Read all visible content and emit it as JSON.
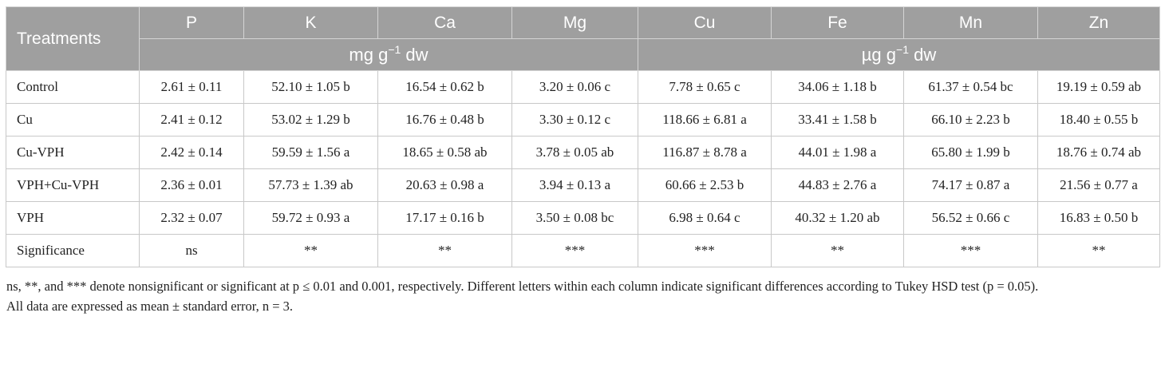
{
  "table": {
    "treatments_header": "Treatments",
    "columns": [
      "P",
      "K",
      "Ca",
      "Mg",
      "Cu",
      "Fe",
      "Mn",
      "Zn"
    ],
    "unit_groups": [
      {
        "unit": "mg g",
        "exp": "−1",
        "suffix": " dw"
      },
      {
        "unit": "µg g",
        "exp": "−1",
        "suffix": " dw"
      }
    ],
    "rows": [
      {
        "treatment": "Control",
        "values": [
          "2.61 ± 0.11",
          "52.10 ± 1.05 b",
          "16.54 ± 0.62 b",
          "3.20 ± 0.06 c",
          "7.78 ± 0.65 c",
          "34.06 ± 1.18 b",
          "61.37 ± 0.54 bc",
          "19.19 ± 0.59 ab"
        ]
      },
      {
        "treatment": "Cu",
        "values": [
          "2.41 ± 0.12",
          "53.02 ± 1.29 b",
          "16.76 ± 0.48 b",
          "3.30 ± 0.12 c",
          "118.66 ± 6.81 a",
          "33.41 ± 1.58 b",
          "66.10 ± 2.23 b",
          "18.40 ± 0.55 b"
        ]
      },
      {
        "treatment": "Cu-VPH",
        "values": [
          "2.42 ± 0.14",
          "59.59 ± 1.56 a",
          "18.65 ± 0.58 ab",
          "3.78 ± 0.05 ab",
          "116.87 ± 8.78 a",
          "44.01 ± 1.98 a",
          "65.80 ± 1.99 b",
          "18.76 ± 0.74 ab"
        ]
      },
      {
        "treatment": "VPH+Cu-VPH",
        "values": [
          "2.36 ± 0.01",
          "57.73 ± 1.39 ab",
          "20.63 ± 0.98 a",
          "3.94 ± 0.13 a",
          "60.66 ± 2.53 b",
          "44.83 ± 2.76 a",
          "74.17 ± 0.87 a",
          "21.56 ± 0.77 a"
        ]
      },
      {
        "treatment": "VPH",
        "values": [
          "2.32 ± 0.07",
          "59.72 ± 0.93 a",
          "17.17 ± 0.16 b",
          "3.50 ± 0.08 bc",
          "6.98 ± 0.64 c",
          "40.32 ± 1.20 ab",
          "56.52 ± 0.66 c",
          "16.83 ± 0.50 b"
        ]
      }
    ],
    "significance": {
      "label": "Significance",
      "values": [
        "ns",
        "**",
        "**",
        "***",
        "***",
        "**",
        "***",
        "**"
      ]
    }
  },
  "footnote": {
    "line1": "ns, **, and *** denote nonsignificant or significant at p ≤ 0.01 and 0.001, respectively. Different letters within each column indicate significant differences according to Tukey HSD test (p = 0.05).",
    "line2": "All data are expressed as mean ± standard error, n = 3."
  }
}
